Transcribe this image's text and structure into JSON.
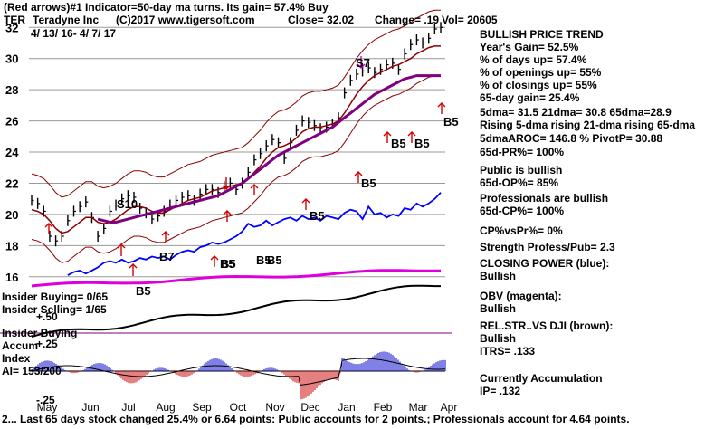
{
  "header": {
    "line1": "(Red arrows)#1 Indicator=50-day ma turns. Its gain= 57.4% Buy",
    "ticker": "TER",
    "company": "Teradyne Inc",
    "copyright": "(C)2017 www.tigersoft.com",
    "close": "Close= 32.02",
    "change": "Change= .19",
    "vol": "Vol= 20605",
    "daterange": "4/ 13/ 16- 4/ 7/ 17"
  },
  "sidebar": {
    "trend_title": "BULLISH PRICE TREND",
    "years_gain": "Year's Gain= 52.5%",
    "days_up": "% of days up= 57.4%",
    "openings_up": "% of openings up= 55%",
    "closings_up": "% of closings up= 55%",
    "gain65": "65-day gain= 25.4%",
    "dma": "5dma= 31.5 21dma= 30.8 65dma=28.9",
    "rising": "Rising 5-dma rising 21-dma rising 65-dma",
    "aroc": "5dmaAROC= 146.8 %  PivotP= 30.88",
    "pr65": "65d-PR%= 100%",
    "public": "Public is bullish",
    "op65": "65d-OP%= 85%",
    "professionals": "Professionals are bullish",
    "cp65": "65d-CP%= 100%",
    "cpvspr": "CP%vsPr%=  0%",
    "strength": "Strength Profess/Pub= 2.3",
    "closing_power": "CLOSING POWER (blue):",
    "cp_state": "Bullish",
    "obv": "OBV (magenta):",
    "obv_state": "Bullish",
    "relstr": "REL.STR..VS DJI (brown):",
    "relstr_state": "Bullish",
    "itrs": "ITRS= .133",
    "accum_title": "Currently Accumulation",
    "ip": "IP=  .132"
  },
  "labels": {
    "insider_buying_count": "Insider Buying= 0/65",
    "insider_selling": "Insider Selling= 1/65",
    "insider_buying": "Insider Buying",
    "accum": "Accum",
    "index": "Index",
    "ai": "AI= 153/200",
    "p50": "+.50",
    "p25": "+.25",
    "m25": "-.25",
    "signals": [
      "S7",
      "S10",
      "B7",
      "B5",
      "B5",
      "B5",
      "B5",
      "B5",
      "B5",
      "B5",
      "B5",
      "B5",
      "B5"
    ]
  },
  "footer": "2... Last 65 days stock changed  25.4% or  6.64 points:  Public accounts for  2 points.;  Professionals account for  4.64 points.",
  "chart_data": {
    "type": "line",
    "title": "Teradyne Inc",
    "x_ticks": [
      "May",
      "Jun",
      "Jul",
      "Aug",
      "Sep",
      "Oct",
      "Nov",
      "Dec",
      "Jan",
      "Feb",
      "Mar",
      "Apr"
    ],
    "y_ticks": [
      32,
      30,
      28,
      26,
      24,
      22,
      20,
      18,
      16
    ],
    "ylim": [
      15,
      33
    ],
    "series": [
      {
        "name": "Price",
        "color": "#000000",
        "values": [
          20.9,
          20.7,
          20.2,
          18.6,
          18.3,
          18.6,
          19.6,
          20.2,
          20.5,
          20.8,
          19.8,
          18.6,
          19.1,
          20.2,
          20.6,
          21.0,
          21.2,
          21.1,
          20.4,
          20.1,
          19.7,
          19.9,
          20.2,
          20.6,
          20.9,
          21.1,
          21.2,
          20.9,
          21.3,
          21.6,
          21.6,
          21.4,
          21.8,
          22.0,
          21.6,
          22.0,
          22.7,
          23.5,
          23.9,
          24.4,
          24.8,
          24.6,
          23.6,
          24.6,
          25.4,
          26.0,
          25.9,
          25.7,
          25.5,
          25.6,
          25.8,
          26.2,
          27.8,
          28.6,
          29.0,
          29.2,
          29.4,
          29.1,
          29.3,
          29.6,
          29.7,
          29.3,
          30.3,
          30.9,
          31.2,
          31.0,
          31.3,
          31.9,
          32.0
        ]
      },
      {
        "name": "21-dma",
        "color": "#8b0000",
        "values": [
          20.3,
          20.2,
          20.0,
          19.6,
          19.1,
          18.8,
          18.9,
          19.2,
          19.5,
          19.8,
          19.8,
          19.5,
          19.4,
          19.5,
          19.7,
          20.0,
          20.3,
          20.5,
          20.5,
          20.4,
          20.2,
          20.1,
          20.1,
          20.3,
          20.5,
          20.7,
          20.9,
          21.0,
          21.1,
          21.3,
          21.5,
          21.6,
          21.7,
          21.8,
          21.9,
          22.0,
          22.3,
          22.7,
          23.1,
          23.6,
          24.0,
          24.3,
          24.4,
          24.6,
          24.9,
          25.3,
          25.5,
          25.6,
          25.6,
          25.7,
          25.8,
          26.0,
          26.5,
          27.1,
          27.7,
          28.2,
          28.6,
          28.9,
          29.1,
          29.3,
          29.5,
          29.6,
          29.8,
          30.0,
          30.3,
          30.5,
          30.7,
          30.8,
          30.8
        ]
      },
      {
        "name": "65-dma",
        "color": "#800080",
        "values": [
          null,
          null,
          null,
          null,
          null,
          null,
          null,
          null,
          null,
          null,
          null,
          19.7,
          19.6,
          19.5,
          19.5,
          19.6,
          19.7,
          19.8,
          19.9,
          20.0,
          20.1,
          20.2,
          20.3,
          20.4,
          20.5,
          20.6,
          20.7,
          20.8,
          20.9,
          21.0,
          21.1,
          21.2,
          21.4,
          21.6,
          21.8,
          22.0,
          22.3,
          22.6,
          22.9,
          23.2,
          23.5,
          23.8,
          24.0,
          24.2,
          24.4,
          24.6,
          24.8,
          25.0,
          25.2,
          25.4,
          25.6,
          25.9,
          26.2,
          26.5,
          26.8,
          27.1,
          27.4,
          27.7,
          27.9,
          28.1,
          28.3,
          28.5,
          28.7,
          28.8,
          28.9,
          28.9,
          28.9,
          28.9,
          28.9
        ]
      },
      {
        "name": "Closing Power",
        "color": "#0000ff",
        "values": [
          null,
          null,
          null,
          null,
          null,
          null,
          16.1,
          16.3,
          16.4,
          16.2,
          16.4,
          16.6,
          16.9,
          17.0,
          16.9,
          17.1,
          16.9,
          17.0,
          17.2,
          17.1,
          17.3,
          17.2,
          17.3,
          17.1,
          17.4,
          17.6,
          17.7,
          17.6,
          17.9,
          18.0,
          18.2,
          18.1,
          18.2,
          18.4,
          18.6,
          18.9,
          19.4,
          19.2,
          19.3,
          19.6,
          19.3,
          19.5,
          19.7,
          19.8,
          19.6,
          19.9,
          19.7,
          19.8,
          19.6,
          19.9,
          19.8,
          19.7,
          20.1,
          20.3,
          20.2,
          19.7,
          20.5,
          20.0,
          20.1,
          19.8,
          20.0,
          19.9,
          20.4,
          20.3,
          20.7,
          20.5,
          20.7,
          21.0,
          21.4
        ]
      }
    ],
    "lower_panel": {
      "name": "Accum Index",
      "y_ticks": [
        "+.50",
        "+.25",
        "-.25"
      ]
    }
  }
}
